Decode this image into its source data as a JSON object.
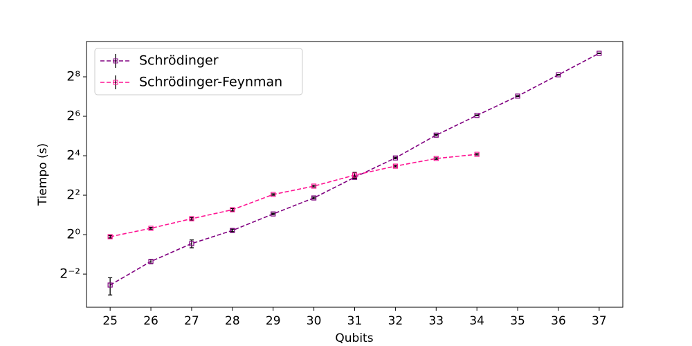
{
  "chart_data": {
    "type": "errorbar-line",
    "x_label": "Qubits",
    "y_label": "Tiempo (s)",
    "x": [
      25,
      26,
      27,
      28,
      29,
      30,
      31,
      32,
      33,
      34,
      35,
      36,
      37
    ],
    "series": [
      {
        "name": "Schrödinger",
        "color": "#800080",
        "values": [
          0.17,
          0.39,
          0.73,
          1.16,
          2.07,
          3.63,
          7.5,
          14.8,
          33,
          66,
          130,
          275,
          585
        ],
        "errors": [
          0.05,
          0.03,
          0.1,
          0.05,
          0.05,
          0.1,
          0.3,
          0.4,
          0.8,
          1,
          2,
          3,
          5
        ]
      },
      {
        "name": "Schrödinger-Feynman",
        "color": "#ff1493",
        "values": [
          0.93,
          1.25,
          1.75,
          2.4,
          4.1,
          5.5,
          8.1,
          11.1,
          14.5,
          16.8,
          null,
          null,
          null
        ],
        "errors": [
          0.04,
          0.04,
          0.08,
          0.1,
          0.1,
          0.15,
          0.8,
          0.3,
          0.4,
          0.4,
          null,
          null,
          null
        ]
      }
    ],
    "xlim": [
      24.42,
      37.58
    ],
    "xticks": [
      25,
      26,
      27,
      28,
      29,
      30,
      31,
      32,
      33,
      34,
      35,
      36,
      37
    ],
    "ylim": [
      0.078,
      885
    ],
    "y_scale": "log2",
    "yticks": [
      {
        "value": 0.25,
        "label": "2⁻²"
      },
      {
        "value": 1,
        "label": "2⁰"
      },
      {
        "value": 4,
        "label": "2²"
      },
      {
        "value": 16,
        "label": "2⁴"
      },
      {
        "value": 64,
        "label": "2⁶"
      },
      {
        "value": 256,
        "label": "2⁸"
      }
    ],
    "error_color": "#000000",
    "legend": "upper left"
  }
}
